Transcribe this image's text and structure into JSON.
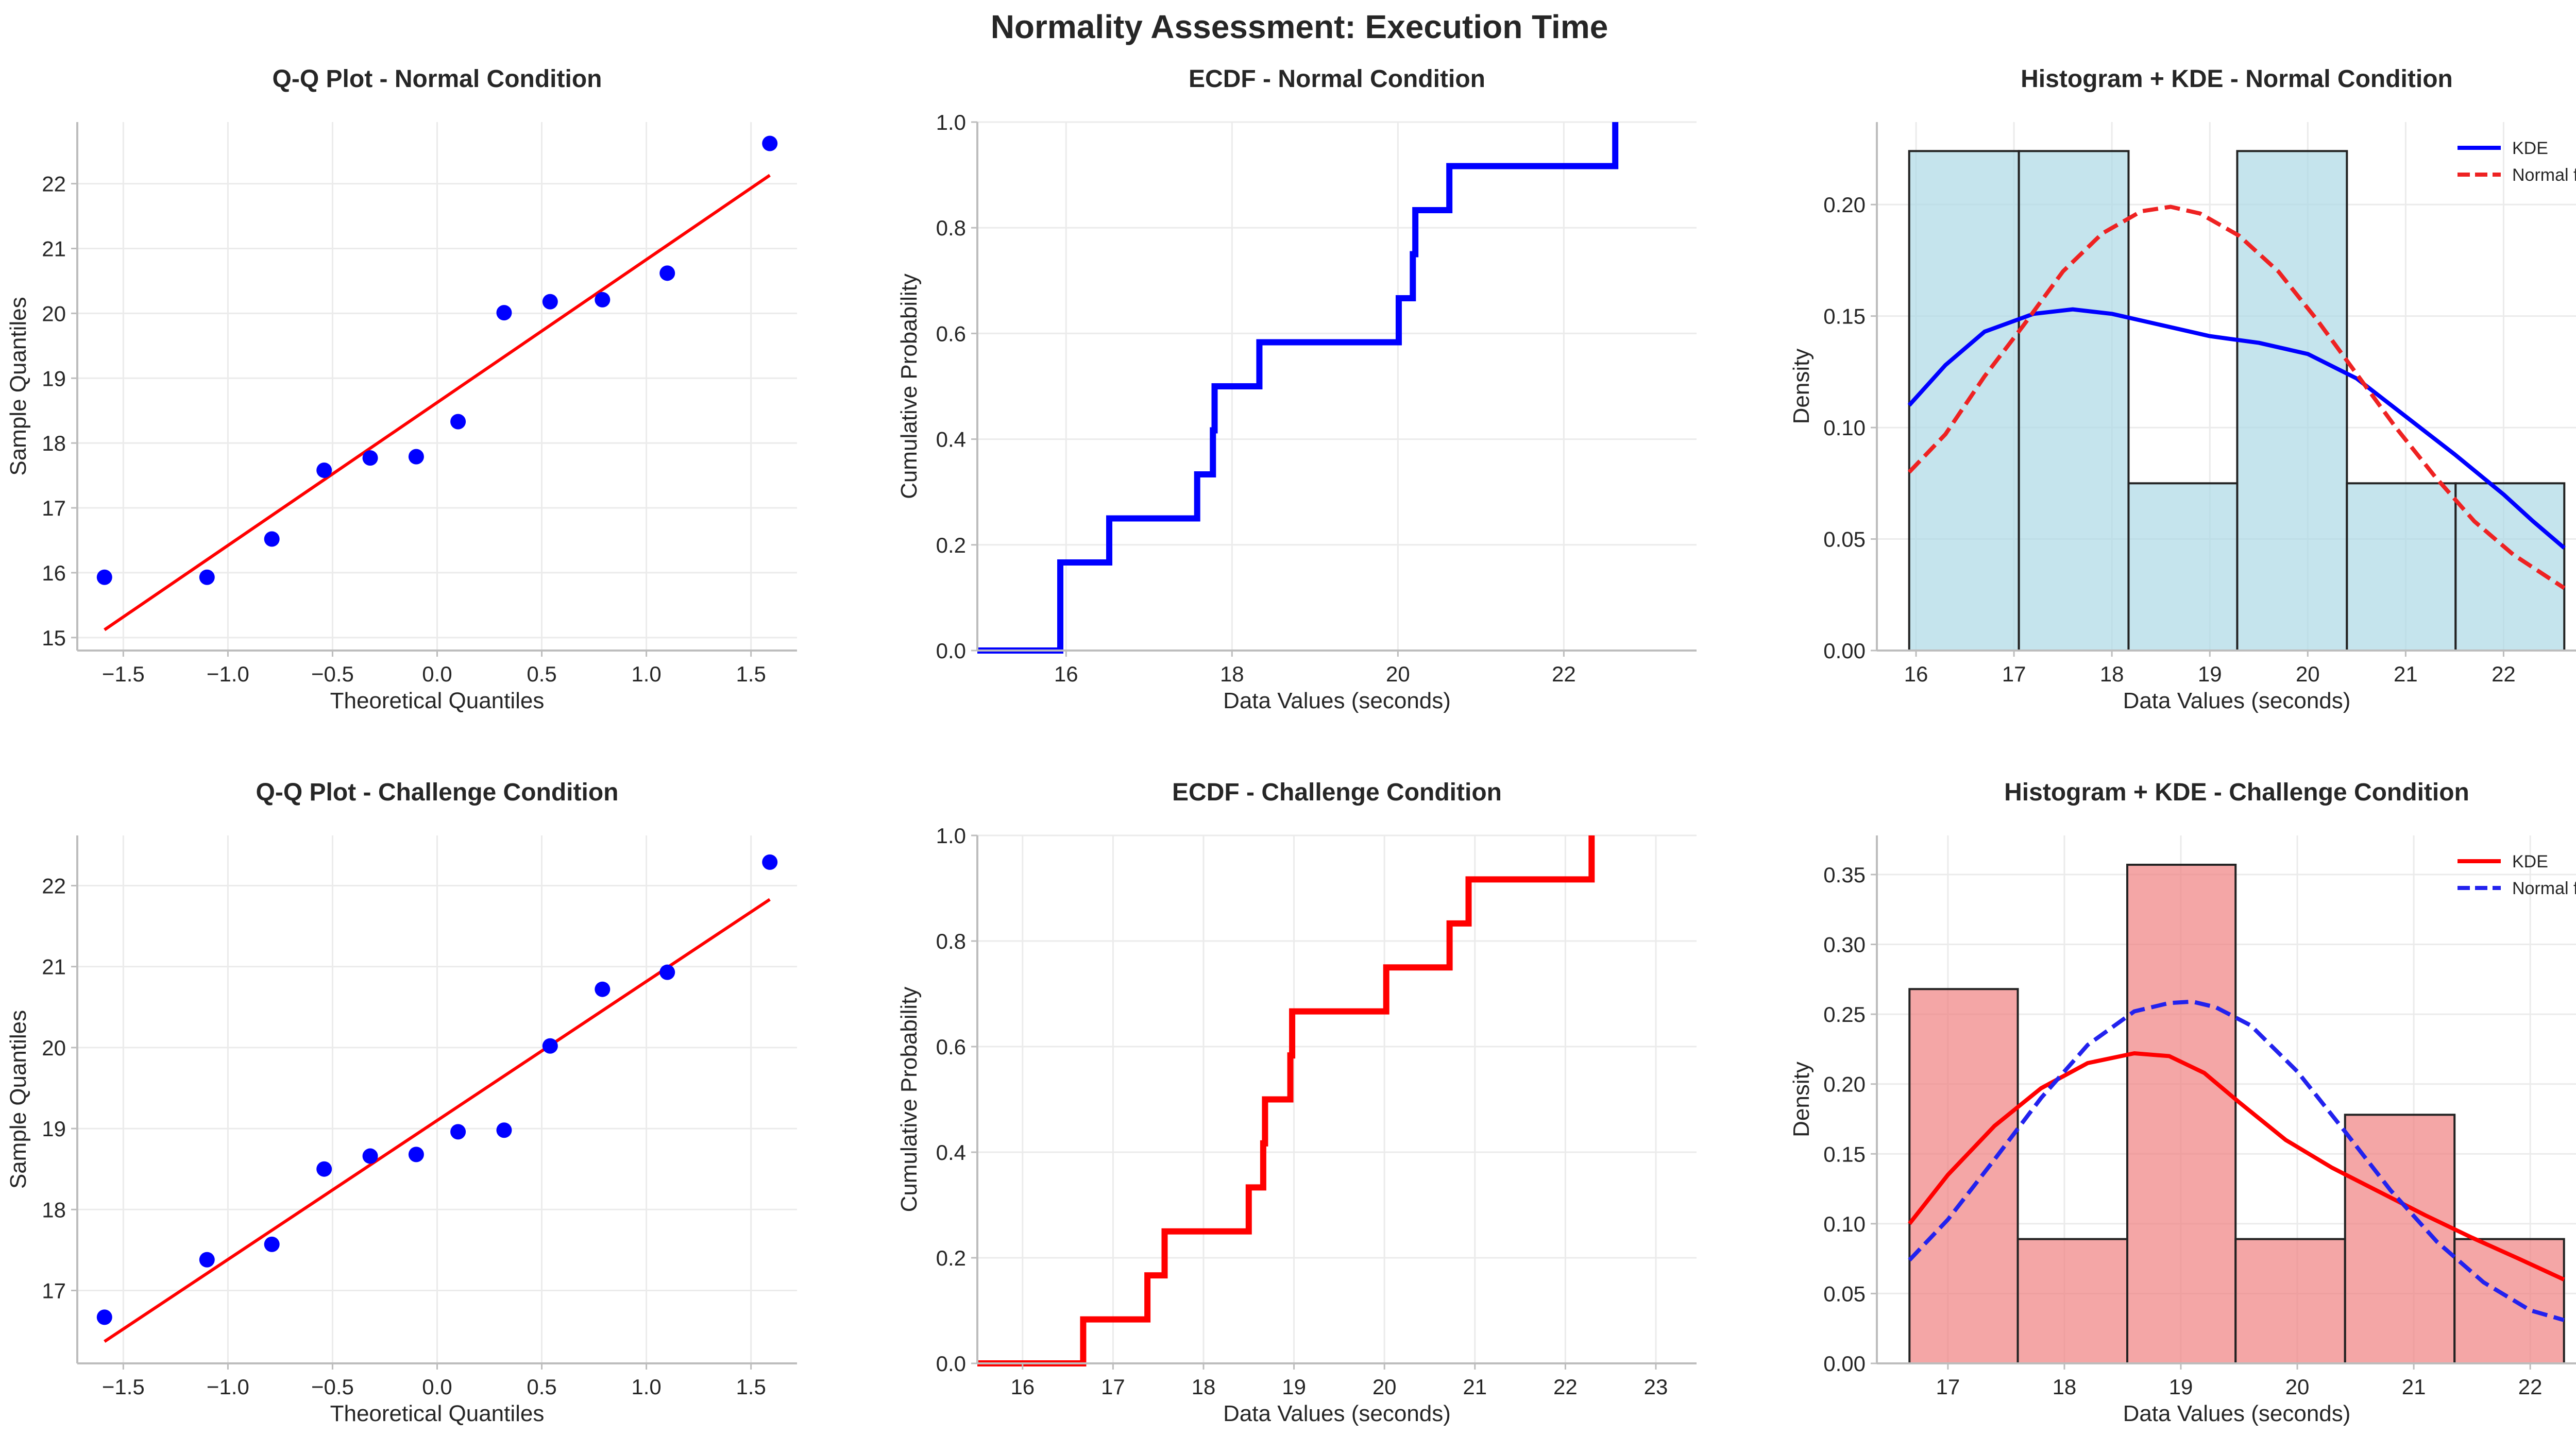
{
  "suptitle": "Normality Assessment: Execution Time",
  "chart_data": [
    {
      "id": "qq_normal",
      "type": "scatter",
      "title": "Q-Q Plot - Normal Condition",
      "xlabel": "Theoretical Quantiles",
      "ylabel": "Sample Quantiles",
      "xlim": [
        -1.72,
        1.72
      ],
      "ylim": [
        14.8,
        22.95
      ],
      "xticks": [
        -1.5,
        -1.0,
        -0.5,
        0.0,
        0.5,
        1.0,
        1.5
      ],
      "xtick_labels": [
        "−1.5",
        "−1.0",
        "−0.5",
        "0.0",
        "0.5",
        "1.0",
        "1.5"
      ],
      "yticks": [
        15,
        16,
        17,
        18,
        19,
        20,
        21,
        22
      ],
      "ytick_labels": [
        "15",
        "16",
        "17",
        "18",
        "19",
        "20",
        "21",
        "22"
      ],
      "points": {
        "x": [
          -1.59,
          -1.1,
          -0.79,
          -0.54,
          -0.32,
          -0.1,
          0.1,
          0.32,
          0.54,
          0.79,
          1.1,
          1.59
        ],
        "y": [
          15.93,
          15.93,
          16.52,
          17.58,
          17.77,
          17.79,
          18.33,
          20.01,
          20.18,
          20.21,
          20.62,
          22.62
        ]
      },
      "fit_line": {
        "x": [
          -1.59,
          1.59
        ],
        "y": [
          15.12,
          22.13
        ]
      },
      "point_color": "#0000ff",
      "line_color": "#ff0000"
    },
    {
      "id": "ecdf_normal",
      "type": "line",
      "subtype": "ecdf",
      "title": "ECDF - Normal Condition",
      "xlabel": "Data Values (seconds)",
      "ylabel": "Cumulative Probability",
      "xlim": [
        14.93,
        23.6
      ],
      "ylim": [
        0.0,
        1.0
      ],
      "xticks": [
        16,
        18,
        20,
        22
      ],
      "xtick_labels": [
        "16",
        "18",
        "20",
        "22"
      ],
      "yticks": [
        0.0,
        0.2,
        0.4,
        0.6,
        0.8,
        1.0
      ],
      "ytick_labels": [
        "0.0",
        "0.2",
        "0.4",
        "0.6",
        "0.8",
        "1.0"
      ],
      "values": [
        15.93,
        15.93,
        16.52,
        17.58,
        17.77,
        17.79,
        18.33,
        20.01,
        20.18,
        20.21,
        20.62,
        22.62
      ],
      "color": "#0000ff"
    },
    {
      "id": "hist_normal",
      "type": "bar",
      "subtype": "histogram_kde",
      "title": "Histogram + KDE - Normal Condition",
      "xlabel": "Data Values (seconds)",
      "ylabel": "Density",
      "xlim": [
        15.6,
        22.95
      ],
      "ylim": [
        0.0,
        0.237
      ],
      "xticks": [
        16,
        17,
        18,
        19,
        20,
        21,
        22
      ],
      "xtick_labels": [
        "16",
        "17",
        "18",
        "19",
        "20",
        "21",
        "22"
      ],
      "yticks": [
        0.0,
        0.05,
        0.1,
        0.15,
        0.2
      ],
      "ytick_labels": [
        "0.00",
        "0.05",
        "0.10",
        "0.15",
        "0.20"
      ],
      "bins": [
        {
          "x0": 15.93,
          "x1": 17.05,
          "density": 0.224
        },
        {
          "x0": 17.05,
          "x1": 18.17,
          "density": 0.224
        },
        {
          "x0": 18.17,
          "x1": 19.28,
          "density": 0.075
        },
        {
          "x0": 19.28,
          "x1": 20.4,
          "density": 0.224
        },
        {
          "x0": 20.4,
          "x1": 21.51,
          "density": 0.075
        },
        {
          "x0": 21.51,
          "x1": 22.62,
          "density": 0.075
        }
      ],
      "bar_color": "#add8e6",
      "series": [
        {
          "name": "KDE",
          "style": "solid",
          "color": "#0000ff",
          "x": [
            15.93,
            16.3,
            16.7,
            17.2,
            17.6,
            18.0,
            18.5,
            19.0,
            19.5,
            20.0,
            20.5,
            21.0,
            21.5,
            22.0,
            22.3,
            22.62
          ],
          "y": [
            0.11,
            0.128,
            0.143,
            0.151,
            0.153,
            0.151,
            0.146,
            0.141,
            0.138,
            0.133,
            0.122,
            0.105,
            0.088,
            0.07,
            0.058,
            0.046
          ]
        },
        {
          "name": "Normal fit",
          "style": "dashed",
          "color": "#ee2222",
          "x": [
            15.93,
            16.3,
            16.7,
            17.1,
            17.5,
            17.9,
            18.3,
            18.6,
            18.9,
            19.3,
            19.7,
            20.1,
            20.5,
            20.9,
            21.3,
            21.7,
            22.1,
            22.62
          ],
          "y": [
            0.08,
            0.097,
            0.123,
            0.146,
            0.17,
            0.187,
            0.197,
            0.199,
            0.196,
            0.186,
            0.17,
            0.148,
            0.124,
            0.1,
            0.078,
            0.058,
            0.043,
            0.028
          ]
        }
      ],
      "legend": {
        "position": "top-right"
      }
    },
    {
      "id": "qq_challenge",
      "type": "scatter",
      "title": "Q-Q Plot - Challenge Condition",
      "xlabel": "Theoretical Quantiles",
      "ylabel": "Sample Quantiles",
      "xlim": [
        -1.72,
        1.72
      ],
      "ylim": [
        16.1,
        22.62
      ],
      "xticks": [
        -1.5,
        -1.0,
        -0.5,
        0.0,
        0.5,
        1.0,
        1.5
      ],
      "xtick_labels": [
        "−1.5",
        "−1.0",
        "−0.5",
        "0.0",
        "0.5",
        "1.0",
        "1.5"
      ],
      "yticks": [
        17,
        18,
        19,
        20,
        21,
        22
      ],
      "ytick_labels": [
        "17",
        "18",
        "19",
        "20",
        "21",
        "22"
      ],
      "points": {
        "x": [
          -1.59,
          -1.1,
          -0.79,
          -0.54,
          -0.32,
          -0.1,
          0.1,
          0.32,
          0.54,
          0.79,
          1.1,
          1.59
        ],
        "y": [
          16.67,
          17.38,
          17.57,
          18.5,
          18.66,
          18.68,
          18.96,
          18.98,
          20.02,
          20.72,
          20.93,
          22.29
        ]
      },
      "fit_line": {
        "x": [
          -1.59,
          1.59
        ],
        "y": [
          16.37,
          21.83
        ]
      },
      "point_color": "#0000ff",
      "line_color": "#ff0000"
    },
    {
      "id": "ecdf_challenge",
      "type": "line",
      "subtype": "ecdf",
      "title": "ECDF - Challenge Condition",
      "xlabel": "Data Values (seconds)",
      "ylabel": "Cumulative Probability",
      "xlim": [
        15.5,
        23.45
      ],
      "ylim": [
        0.0,
        1.0
      ],
      "xticks": [
        16,
        17,
        18,
        19,
        20,
        21,
        22,
        23
      ],
      "xtick_labels": [
        "16",
        "17",
        "18",
        "19",
        "20",
        "21",
        "22",
        "23"
      ],
      "yticks": [
        0.0,
        0.2,
        0.4,
        0.6,
        0.8,
        1.0
      ],
      "ytick_labels": [
        "0.0",
        "0.2",
        "0.4",
        "0.6",
        "0.8",
        "1.0"
      ],
      "values": [
        16.67,
        17.38,
        17.57,
        18.5,
        18.66,
        18.68,
        18.96,
        18.98,
        20.02,
        20.72,
        20.93,
        22.29
      ],
      "color": "#ff0000"
    },
    {
      "id": "hist_challenge",
      "type": "bar",
      "subtype": "histogram_kde",
      "title": "Histogram + KDE - Challenge Condition",
      "xlabel": "Data Values (seconds)",
      "ylabel": "Density",
      "xlim": [
        16.39,
        22.57
      ],
      "ylim": [
        0.0,
        0.378
      ],
      "xticks": [
        17,
        18,
        19,
        20,
        21,
        22
      ],
      "xtick_labels": [
        "17",
        "18",
        "19",
        "20",
        "21",
        "22"
      ],
      "yticks": [
        0.0,
        0.05,
        0.1,
        0.15,
        0.2,
        0.25,
        0.3,
        0.35
      ],
      "ytick_labels": [
        "0.00",
        "0.05",
        "0.10",
        "0.15",
        "0.20",
        "0.25",
        "0.30",
        "0.35"
      ],
      "bins": [
        {
          "x0": 16.67,
          "x1": 17.6,
          "density": 0.268
        },
        {
          "x0": 17.6,
          "x1": 18.54,
          "density": 0.089
        },
        {
          "x0": 18.54,
          "x1": 19.47,
          "density": 0.357
        },
        {
          "x0": 19.47,
          "x1": 20.41,
          "density": 0.089
        },
        {
          "x0": 20.41,
          "x1": 21.35,
          "density": 0.178
        },
        {
          "x0": 21.35,
          "x1": 22.29,
          "density": 0.089
        }
      ],
      "bar_color": "#f08080",
      "series": [
        {
          "name": "KDE",
          "style": "solid",
          "color": "#ff0000",
          "x": [
            16.67,
            17.0,
            17.4,
            17.8,
            18.2,
            18.6,
            18.9,
            19.2,
            19.5,
            19.9,
            20.3,
            20.7,
            21.1,
            21.5,
            21.9,
            22.29
          ],
          "y": [
            0.1,
            0.135,
            0.17,
            0.197,
            0.215,
            0.222,
            0.22,
            0.208,
            0.187,
            0.16,
            0.14,
            0.123,
            0.106,
            0.09,
            0.075,
            0.06
          ]
        },
        {
          "name": "Normal fit",
          "style": "dashed",
          "color": "#2222ee",
          "x": [
            16.67,
            17.0,
            17.4,
            17.8,
            18.2,
            18.6,
            18.9,
            19.1,
            19.3,
            19.6,
            20.0,
            20.4,
            20.8,
            21.2,
            21.6,
            22.0,
            22.29
          ],
          "y": [
            0.074,
            0.103,
            0.146,
            0.19,
            0.228,
            0.252,
            0.258,
            0.259,
            0.255,
            0.242,
            0.209,
            0.167,
            0.124,
            0.087,
            0.058,
            0.038,
            0.031
          ]
        }
      ],
      "legend": {
        "position": "top-right"
      }
    }
  ]
}
